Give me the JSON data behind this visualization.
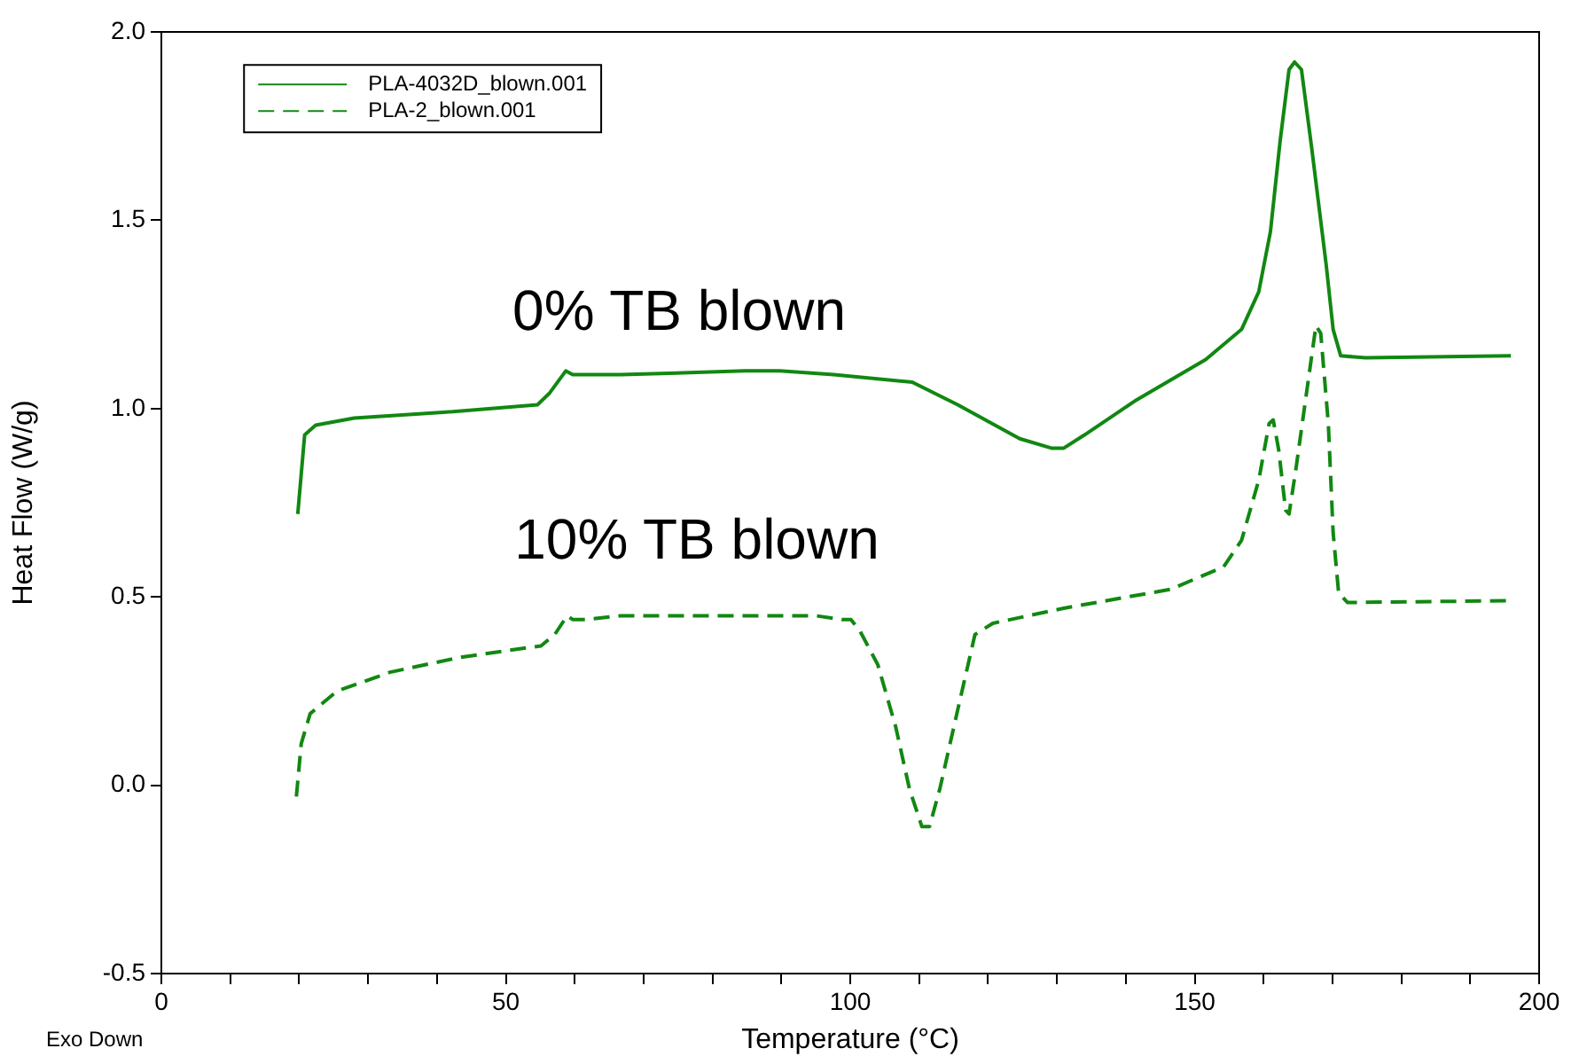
{
  "chart_data": {
    "type": "line",
    "xlabel": "Temperature (°C)",
    "ylabel": "Heat Flow (W/g)",
    "xlim": [
      0,
      200
    ],
    "ylim": [
      -0.5,
      2.0
    ],
    "xticks": [
      0,
      {
        "value": 10,
        "label": null
      },
      {
        "value": 20,
        "label": null
      },
      {
        "value": 30,
        "label": null
      },
      {
        "value": 40,
        "label": null
      },
      50,
      {
        "value": 60,
        "label": null
      },
      {
        "value": 70,
        "label": null
      },
      {
        "value": 80,
        "label": null
      },
      {
        "value": 90,
        "label": null
      },
      100,
      {
        "value": 110,
        "label": null
      },
      {
        "value": 120,
        "label": null
      },
      {
        "value": 130,
        "label": null
      },
      {
        "value": 140,
        "label": null
      },
      150,
      {
        "value": 160,
        "label": null
      },
      {
        "value": 170,
        "label": null
      },
      {
        "value": 180,
        "label": null
      },
      {
        "value": 190,
        "label": null
      },
      200
    ],
    "yticks": [
      {
        "value": -0.5,
        "label": "-0.5"
      },
      {
        "value": 0,
        "label": "0.0"
      },
      {
        "value": 0.5,
        "label": "0.5"
      },
      {
        "value": 1,
        "label": "1.0"
      },
      {
        "value": 1.5,
        "label": "1.5"
      },
      {
        "value": 2,
        "label": "2.0"
      }
    ],
    "grid": false,
    "legend": "top left",
    "marker": "none",
    "annotations": [
      "0% TB blown",
      "10% TB blown",
      "Exo Down"
    ],
    "series": [
      {
        "name": "PLA-4032D_blown.001",
        "color": "#118811",
        "line_style": "solid",
        "x": [
          19.8,
          20.8,
          22.4,
          28,
          40.9,
          54.6,
          56.3,
          58.7,
          59.7,
          61.5,
          66.7,
          84.7,
          89.8,
          97.6,
          109,
          115.6,
          124.6,
          129.2,
          131,
          134,
          141.3,
          151.6,
          156.8,
          159.3,
          161,
          162.4,
          163.7,
          164.5,
          165.5,
          167,
          169.1,
          170.1,
          171.2,
          174.8,
          195.9
        ],
        "values": [
          0.72,
          0.93,
          0.956,
          0.975,
          0.99,
          1.01,
          1.04,
          1.1,
          1.09,
          1.09,
          1.09,
          1.1,
          1.1,
          1.09,
          1.07,
          1.01,
          0.92,
          0.895,
          0.895,
          0.93,
          1.02,
          1.13,
          1.21,
          1.31,
          1.47,
          1.71,
          1.9,
          1.92,
          1.9,
          1.69,
          1.38,
          1.21,
          1.14,
          1.135,
          1.14
        ]
      },
      {
        "name": "PLA-2_blown.001",
        "color": "#118811",
        "line_style": "dashed",
        "x": [
          19.6,
          20.3,
          21.6,
          25.5,
          33.2,
          43.5,
          55.1,
          57.1,
          58.9,
          59.7,
          61.5,
          66.7,
          84.7,
          95,
          98.8,
          100.1,
          101.4,
          104,
          106.6,
          108.6,
          110.4,
          111.5,
          113,
          115.6,
          118.1,
          120.7,
          131,
          146.5,
          154.2,
          156.8,
          159.3,
          160.8,
          161.4,
          162.2,
          163.2,
          163.7,
          164.7,
          166.3,
          167.6,
          168.3,
          169.4,
          170.1,
          170.9,
          172.2,
          195.4
        ],
        "values": [
          -0.03,
          0.11,
          0.19,
          0.25,
          0.3,
          0.34,
          0.37,
          0.4,
          0.45,
          0.44,
          0.44,
          0.45,
          0.45,
          0.45,
          0.44,
          0.44,
          0.41,
          0.32,
          0.155,
          -0.01,
          -0.11,
          -0.11,
          -0.01,
          0.2,
          0.4,
          0.43,
          0.47,
          0.52,
          0.58,
          0.65,
          0.81,
          0.96,
          0.97,
          0.89,
          0.73,
          0.72,
          0.84,
          1.05,
          1.22,
          1.2,
          0.96,
          0.67,
          0.51,
          0.485,
          0.49
        ]
      }
    ]
  }
}
